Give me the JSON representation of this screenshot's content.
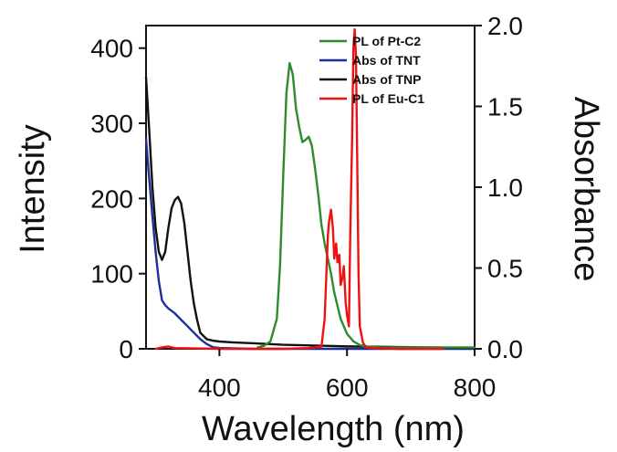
{
  "chart_data": {
    "type": "line",
    "title": "",
    "xlabel": "Wavelength (nm)",
    "ylabel_left": "Intensity",
    "ylabel_right": "Absorbance",
    "xlim": [
      285,
      800
    ],
    "ylim_left": [
      0,
      430
    ],
    "ylim_right": [
      0,
      2.0
    ],
    "x_ticks": [
      400,
      600,
      800
    ],
    "y_ticks_left": [
      0,
      100,
      200,
      300,
      400
    ],
    "y_ticks_right": [
      "0.0",
      "0.5",
      "1.0",
      "1.5",
      "2.0"
    ],
    "legend_position": "top-right",
    "grid": false,
    "series": [
      {
        "name": "PL of Pt-C2",
        "color": "#2e8b2e",
        "axis": "left",
        "x": [
          460,
          470,
          480,
          490,
          495,
          500,
          505,
          510,
          515,
          520,
          525,
          530,
          535,
          540,
          545,
          550,
          555,
          560,
          565,
          570,
          575,
          580,
          590,
          600,
          610,
          620,
          630,
          650,
          680,
          720,
          800
        ],
        "y": [
          2,
          4,
          10,
          40,
          110,
          230,
          340,
          380,
          365,
          320,
          295,
          275,
          278,
          282,
          270,
          240,
          205,
          165,
          140,
          120,
          100,
          75,
          40,
          20,
          10,
          5,
          3,
          2,
          2,
          2,
          2
        ]
      },
      {
        "name": "Abs of TNT",
        "color": "#1f2f9a",
        "axis": "right",
        "x": [
          285,
          290,
          295,
          300,
          305,
          310,
          315,
          320,
          330,
          340,
          350,
          360,
          370,
          380,
          390,
          400,
          450,
          500,
          600,
          700,
          800
        ],
        "y": [
          1.3,
          1.05,
          0.82,
          0.6,
          0.42,
          0.3,
          0.27,
          0.25,
          0.22,
          0.18,
          0.14,
          0.1,
          0.06,
          0.03,
          0.01,
          0.005,
          0.0,
          0.0,
          0.0,
          0.0,
          0.0
        ]
      },
      {
        "name": "Abs of TNP",
        "color": "#111111",
        "axis": "right",
        "x": [
          285,
          290,
          295,
          300,
          305,
          310,
          315,
          320,
          325,
          330,
          335,
          340,
          345,
          350,
          355,
          360,
          365,
          370,
          380,
          390,
          400,
          420,
          450,
          500,
          600,
          700,
          800
        ],
        "y": [
          1.68,
          1.35,
          1.0,
          0.75,
          0.6,
          0.55,
          0.6,
          0.75,
          0.87,
          0.92,
          0.94,
          0.9,
          0.78,
          0.6,
          0.42,
          0.28,
          0.18,
          0.1,
          0.06,
          0.05,
          0.045,
          0.04,
          0.035,
          0.025,
          0.015,
          0.01,
          0.005
        ]
      },
      {
        "name": "PL of Eu-C1",
        "color": "#ee1111",
        "axis": "left",
        "x": [
          300,
          310,
          320,
          330,
          400,
          500,
          540,
          560,
          565,
          570,
          572,
          575,
          578,
          580,
          583,
          585,
          588,
          590,
          593,
          595,
          598,
          600,
          603,
          605,
          608,
          610,
          612,
          614,
          616,
          618,
          620,
          625,
          630,
          640,
          680,
          750
        ],
        "y": [
          0,
          2,
          3,
          1,
          0,
          0,
          1,
          3,
          40,
          150,
          170,
          185,
          160,
          120,
          140,
          115,
          125,
          85,
          95,
          110,
          60,
          45,
          30,
          150,
          280,
          400,
          425,
          390,
          250,
          100,
          30,
          8,
          2,
          1,
          0,
          0
        ]
      }
    ]
  }
}
